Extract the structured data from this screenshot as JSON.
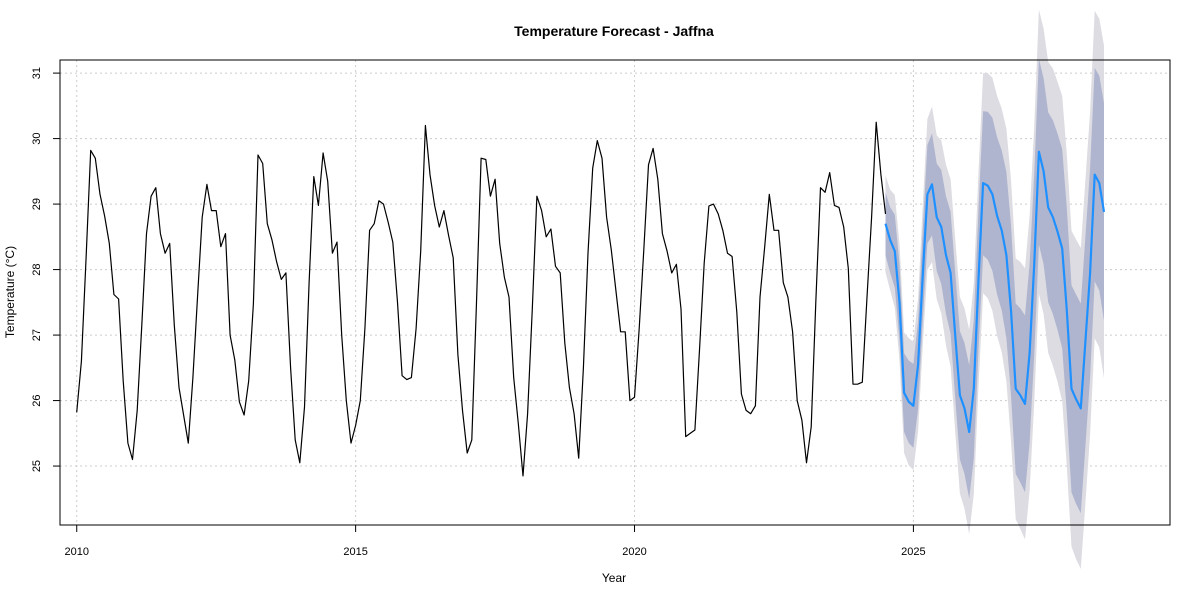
{
  "colors": {
    "history_line": "#000000",
    "forecast_line": "#1E90FF",
    "band_80": "#B0B5CF",
    "band_95": "#DCDCE2",
    "grid": "#CCCCCC",
    "axis": "#000000"
  },
  "chart_data": {
    "type": "line",
    "title": "Temperature Forecast - Jaffna",
    "xlabel": "Year",
    "ylabel": "Temperature (°C)",
    "xlim": [
      2009.7,
      2029.6
    ],
    "ylim": [
      24.1,
      31.2
    ],
    "x_ticks": [
      2010,
      2015,
      2020,
      2025
    ],
    "y_ticks": [
      25,
      26,
      27,
      28,
      29,
      30,
      31
    ],
    "grid": true,
    "start_year": 2010,
    "history_months": 174,
    "series": [
      {
        "values": [
          25.82,
          26.6,
          28.15,
          29.82,
          29.7,
          29.15,
          28.82,
          28.4,
          27.62,
          27.55,
          26.3,
          25.35,
          25.1,
          25.85,
          27.15,
          28.55,
          29.12,
          29.25,
          28.55,
          28.25,
          28.4,
          27.15,
          26.2,
          25.78,
          25.35,
          26.35,
          27.6,
          28.8,
          29.3,
          28.9,
          28.9,
          28.35,
          28.55,
          27.0,
          26.62,
          25.98,
          25.78,
          26.3,
          27.48,
          29.75,
          29.62,
          28.7,
          28.45,
          28.12,
          27.85,
          27.95,
          26.5,
          25.4,
          25.05,
          25.9,
          27.8,
          29.42,
          28.98,
          29.78,
          29.35,
          28.25,
          28.42,
          27.0,
          26.0,
          25.35,
          25.62,
          26.0,
          27.1,
          28.6,
          28.7,
          29.05,
          29.0,
          28.72,
          28.42,
          27.5,
          26.38,
          26.32,
          26.35,
          27.1,
          28.28,
          30.2,
          29.45,
          28.98,
          28.65,
          28.9,
          28.52,
          28.18,
          26.7,
          25.85,
          25.2,
          25.4,
          27.5,
          29.7,
          29.68,
          29.12,
          29.38,
          28.4,
          27.88,
          27.58,
          26.35,
          25.65,
          24.85,
          25.8,
          27.4,
          29.12,
          28.9,
          28.5,
          28.62,
          28.05,
          27.95,
          26.88,
          26.2,
          25.8,
          25.12,
          26.5,
          28.25,
          29.55,
          29.97,
          29.7,
          28.8,
          28.3,
          27.68,
          27.05,
          27.05,
          26.0,
          26.05,
          27.1,
          28.3,
          29.6,
          29.85,
          29.38,
          28.55,
          28.28,
          27.95,
          28.08,
          27.4,
          25.45,
          25.5,
          25.55,
          26.8,
          28.1,
          28.97,
          29.0,
          28.85,
          28.6,
          28.25,
          28.2,
          27.35,
          26.1,
          25.85,
          25.8,
          25.92,
          27.58,
          28.35,
          29.15,
          28.6,
          28.6,
          27.8,
          27.58,
          27.05,
          26.0,
          25.7,
          25.05,
          25.6,
          27.5,
          29.25,
          29.18,
          29.48,
          28.98,
          28.95,
          28.65,
          28.02,
          26.25,
          26.25,
          26.28,
          27.55,
          28.8,
          30.25,
          29.45,
          28.85
        ]
      },
      {
        "values": [
          28.7,
          28.45,
          28.28,
          27.5,
          26.12,
          25.98,
          25.92,
          26.55,
          27.9,
          29.15,
          29.3,
          28.8,
          28.65,
          28.22,
          27.95,
          26.98,
          26.08,
          25.88,
          25.52,
          26.18,
          27.85,
          29.32,
          29.28,
          29.15,
          28.82,
          28.6,
          28.22,
          27.38,
          26.18,
          26.08,
          25.95,
          26.72,
          28.1,
          29.8,
          29.5,
          28.95,
          28.8,
          28.58,
          28.32,
          27.38,
          26.18,
          26.02,
          25.88,
          26.9,
          27.95,
          29.45,
          29.32,
          28.88
        ],
        "lower_80": [
          28.22,
          27.95,
          27.72,
          26.92,
          25.52,
          25.35,
          25.28,
          25.88,
          27.2,
          28.4,
          28.52,
          27.98,
          27.78,
          27.32,
          27.02,
          26.02,
          25.1,
          24.88,
          24.5,
          25.12,
          26.78,
          28.22,
          28.15,
          27.98,
          27.62,
          27.38,
          26.95,
          26.08,
          24.88,
          24.75,
          24.6,
          25.35,
          26.72,
          28.38,
          28.08,
          27.5,
          27.32,
          27.08,
          26.8,
          25.82,
          24.6,
          24.42,
          24.28,
          25.3,
          26.35,
          27.82,
          27.68,
          27.22
        ],
        "upper_80": [
          29.18,
          28.95,
          28.84,
          28.08,
          26.72,
          26.61,
          26.56,
          27.22,
          28.6,
          29.9,
          30.08,
          29.62,
          29.52,
          29.12,
          28.88,
          27.94,
          27.06,
          26.88,
          26.54,
          27.24,
          28.92,
          30.42,
          30.41,
          30.32,
          30.02,
          29.82,
          29.49,
          28.68,
          27.48,
          27.41,
          27.3,
          28.09,
          29.48,
          31.22,
          30.92,
          30.4,
          30.28,
          30.08,
          29.84,
          28.94,
          27.76,
          27.62,
          27.48,
          28.5,
          29.55,
          31.08,
          30.96,
          30.54
        ],
        "lower_95": [
          27.96,
          27.68,
          27.42,
          26.61,
          25.2,
          25.01,
          24.94,
          25.53,
          26.83,
          28.0,
          28.11,
          27.55,
          27.33,
          26.84,
          26.52,
          25.51,
          24.58,
          24.35,
          23.96,
          24.57,
          26.21,
          27.64,
          27.56,
          27.37,
          26.99,
          26.74,
          26.29,
          25.39,
          24.19,
          24.04,
          23.88,
          24.62,
          25.99,
          27.63,
          27.32,
          26.73,
          26.53,
          26.29,
          25.99,
          25.0,
          23.77,
          23.58,
          23.43,
          24.43,
          25.49,
          26.95,
          26.81,
          26.34
        ],
        "upper_95": [
          29.44,
          29.22,
          29.14,
          28.39,
          27.04,
          26.95,
          26.9,
          27.57,
          28.97,
          30.3,
          30.49,
          30.05,
          29.97,
          29.6,
          29.38,
          28.45,
          27.58,
          27.41,
          27.08,
          27.79,
          29.49,
          31.0,
          31.0,
          30.93,
          30.65,
          30.46,
          30.15,
          29.37,
          28.17,
          28.12,
          28.02,
          28.82,
          30.21,
          31.97,
          31.68,
          31.17,
          31.07,
          30.87,
          30.65,
          29.76,
          28.59,
          28.46,
          28.33,
          29.37,
          30.41,
          31.95,
          31.83,
          31.42
        ]
      }
    ]
  }
}
